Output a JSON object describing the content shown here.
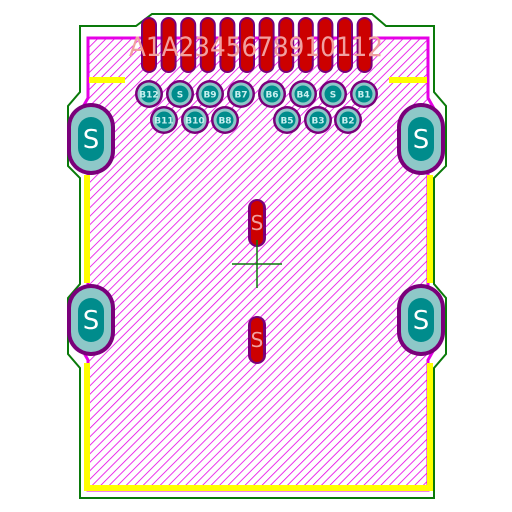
{
  "colors": {
    "background": "#ffffff",
    "outline": "#0a7a0a",
    "courtyard": "#e600e6",
    "silkscreen": "#ffff00",
    "pad_copper": "#cc0000",
    "pad_ring": "#7a007a",
    "tht_fill": "#8ec8c8",
    "tht_hole": "#008c8c",
    "label_on_pad": "#f0a0a0",
    "label_on_tht": "#ffffff",
    "small_label": "#c8f0f0",
    "crosshair": "#0a7a0a"
  },
  "top_pads": [
    "A1",
    "A2",
    "A3",
    "A4",
    "A5",
    "A6",
    "A7",
    "A8",
    "A9",
    "A10",
    "A11",
    "A12"
  ],
  "top_label_text": "A1A2345678910112",
  "row1_labels": [
    "B12",
    "S",
    "B9",
    "B7",
    "B6",
    "B4",
    "S",
    "B1"
  ],
  "row2_labels": [
    "B11",
    "B10",
    "B8",
    "B5",
    "B3",
    "B2"
  ],
  "shield_pads": {
    "label": "S",
    "items": [
      {
        "id": "shield-top-left",
        "label": "S"
      },
      {
        "id": "shield-top-right",
        "label": "S"
      },
      {
        "id": "shield-bottom-left",
        "label": "S"
      },
      {
        "id": "shield-bottom-right",
        "label": "S"
      }
    ]
  },
  "center_slots": [
    {
      "id": "slot-upper",
      "label": "S"
    },
    {
      "id": "slot-lower",
      "label": "S"
    }
  ],
  "center_marker": "crosshair-icon"
}
